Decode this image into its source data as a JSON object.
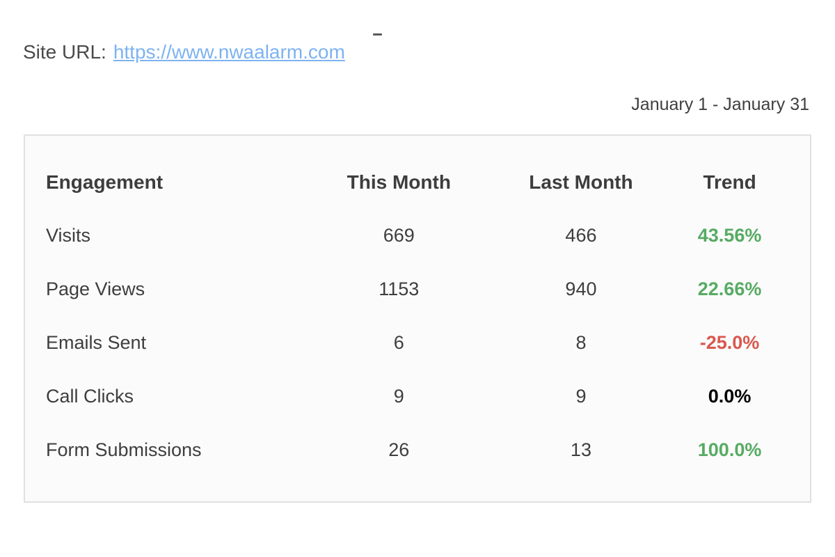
{
  "header": {
    "site_url_label": "Site URL:",
    "site_url": "https://www.nwaalarm.com",
    "date_range": "January 1 - January 31"
  },
  "table": {
    "headers": [
      "Engagement",
      "This Month",
      "Last Month",
      "Trend"
    ],
    "rows": [
      {
        "label": "Visits",
        "this_month": "669",
        "last_month": "466",
        "trend": "43.56%",
        "trend_color": "#57ab63"
      },
      {
        "label": "Page Views",
        "this_month": "1153",
        "last_month": "940",
        "trend": "22.66%",
        "trend_color": "#57ab63"
      },
      {
        "label": "Emails Sent",
        "this_month": "6",
        "last_month": "8",
        "trend": "-25.0%",
        "trend_color": "#d9584f"
      },
      {
        "label": "Call Clicks",
        "this_month": "9",
        "last_month": "9",
        "trend": "0.0%",
        "trend_color": "#000000"
      },
      {
        "label": "Form Submissions",
        "this_month": "26",
        "last_month": "13",
        "trend": "100.0%",
        "trend_color": "#57ab63"
      }
    ]
  },
  "colors": {
    "positive_trend": "#57ab63",
    "negative_trend": "#d9584f",
    "neutral_trend": "#000000",
    "link": "#7db3f1",
    "card_border": "#e0e0e0",
    "text": "#3e3e3e"
  }
}
